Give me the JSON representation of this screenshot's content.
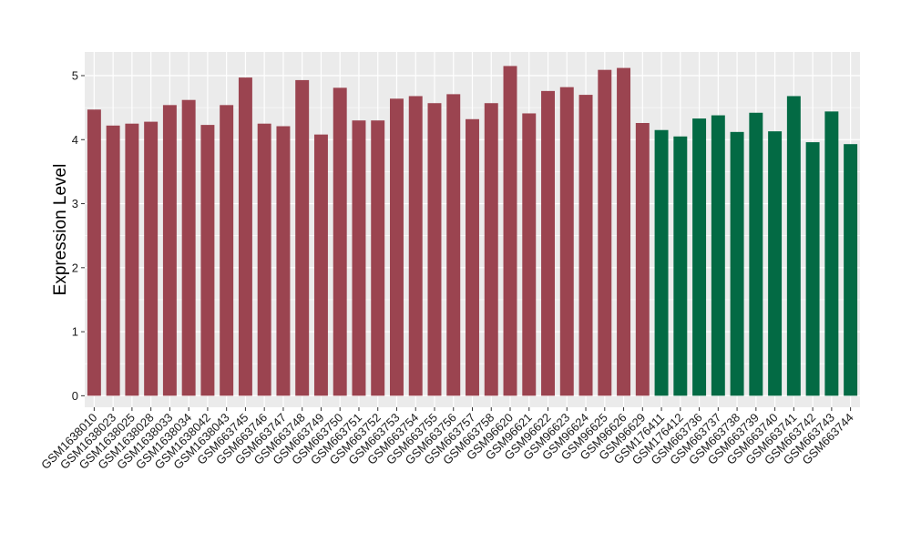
{
  "chart_data": {
    "type": "bar",
    "title": "",
    "xlabel": "",
    "ylabel": "Expression Level",
    "ylim": [
      -0.18,
      5.37
    ],
    "yticks": [
      0,
      1,
      2,
      3,
      4,
      5
    ],
    "grid": true,
    "legend": "none",
    "colors": {
      "group1": "#9B4450",
      "group2": "#036A44",
      "panel": "#EBEBEB",
      "grid": "#FFFFFF"
    },
    "categories": [
      "GSM1638010",
      "GSM1638023",
      "GSM1638025",
      "GSM1638028",
      "GSM1638033",
      "GSM1638034",
      "GSM1638042",
      "GSM1638043",
      "GSM663745",
      "GSM663746",
      "GSM663747",
      "GSM663748",
      "GSM663749",
      "GSM663750",
      "GSM663751",
      "GSM663752",
      "GSM663753",
      "GSM663754",
      "GSM663755",
      "GSM663756",
      "GSM663757",
      "GSM663758",
      "GSM96620",
      "GSM96621",
      "GSM96622",
      "GSM96623",
      "GSM96624",
      "GSM96625",
      "GSM96626",
      "GSM96629",
      "GSM176411",
      "GSM176412",
      "GSM663736",
      "GSM663737",
      "GSM663738",
      "GSM663739",
      "GSM663740",
      "GSM663741",
      "GSM663742",
      "GSM663743",
      "GSM663744"
    ],
    "values": [
      4.47,
      4.22,
      4.25,
      4.28,
      4.54,
      4.62,
      4.23,
      4.54,
      4.97,
      4.25,
      4.21,
      4.93,
      4.08,
      4.81,
      4.3,
      4.3,
      4.64,
      4.68,
      4.57,
      4.71,
      4.32,
      4.57,
      5.15,
      4.41,
      4.76,
      4.82,
      4.7,
      5.09,
      5.12,
      4.26,
      4.15,
      4.05,
      4.33,
      4.38,
      4.12,
      4.42,
      4.13,
      4.68,
      3.96,
      4.44,
      3.93
    ],
    "groups": [
      1,
      1,
      1,
      1,
      1,
      1,
      1,
      1,
      1,
      1,
      1,
      1,
      1,
      1,
      1,
      1,
      1,
      1,
      1,
      1,
      1,
      1,
      1,
      1,
      1,
      1,
      1,
      1,
      1,
      1,
      2,
      2,
      2,
      2,
      2,
      2,
      2,
      2,
      2,
      2,
      2
    ]
  }
}
